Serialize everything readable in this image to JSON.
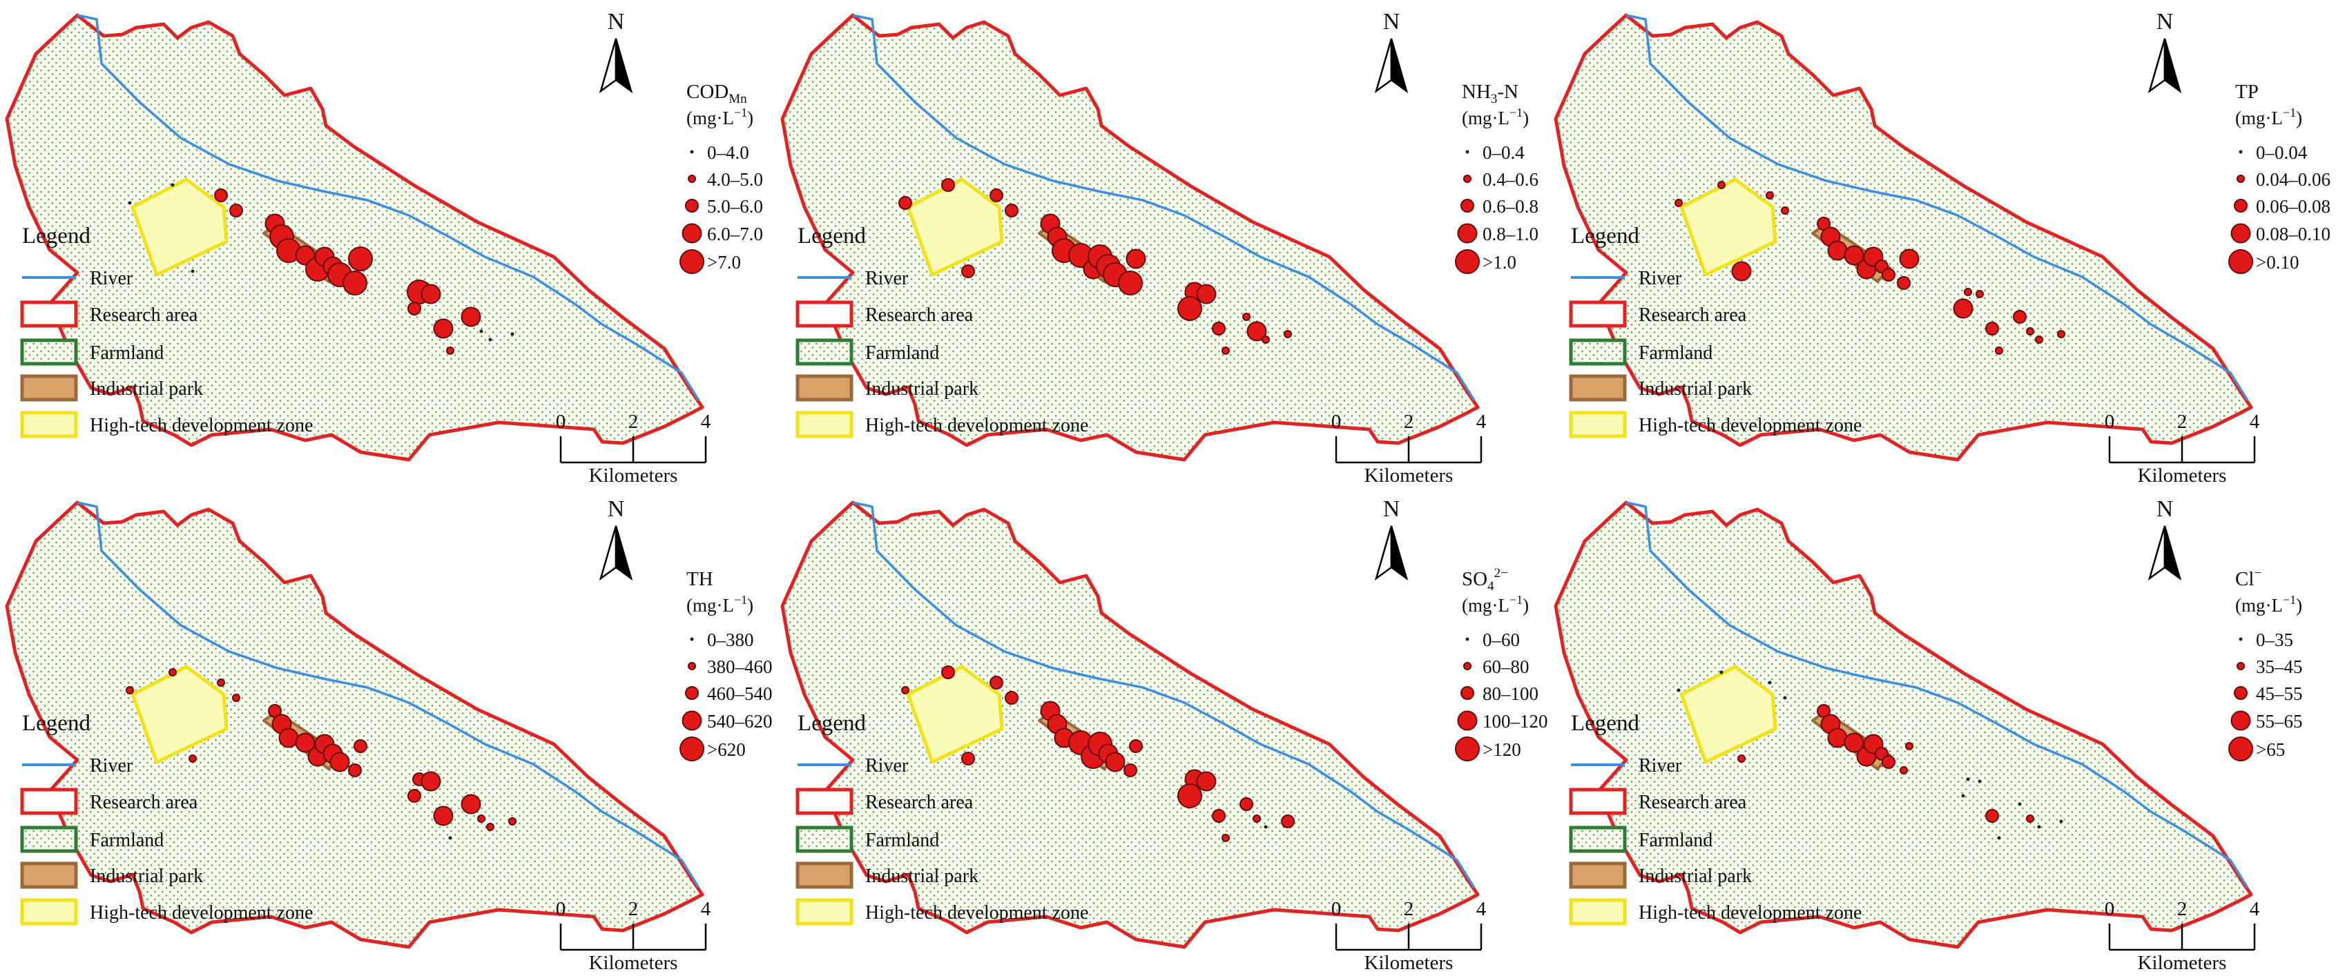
{
  "legend_title": "Legend",
  "legend_items": [
    {
      "key": "river",
      "label": "River"
    },
    {
      "key": "research",
      "label": "Research area"
    },
    {
      "key": "farmland",
      "label": "Farmland"
    },
    {
      "key": "industrial",
      "label": "Industrial park"
    },
    {
      "key": "hightech",
      "label": "High-tech development zone"
    }
  ],
  "north_label": "N",
  "scalebar": {
    "ticks": [
      "0",
      "2",
      "4"
    ],
    "unit": "Kilometers"
  },
  "colors": {
    "river": "#3d8fe0",
    "boundary": "#e02424",
    "farmland_fill": "#f7f9ee",
    "farmland_dot": "#4a9a3a",
    "farmland_legend_border": "#2f7d32",
    "industrial_fill": "#d9a26a",
    "industrial_border": "#9a6a3a",
    "hightech_fill": "#fbfbb8",
    "hightech_border": "#f2e21c",
    "symbol_fill": "#e01818",
    "symbol_stroke": "#6a0a0a"
  },
  "panels": [
    {
      "id": "codmn",
      "param_base": "COD",
      "param_sub": "Mn",
      "param_sup": "",
      "unit_base": "(mg·L",
      "unit_sup": "−1",
      "unit_close": ")",
      "classes": [
        "0–4.0",
        "4.0–5.0",
        "5.0–6.0",
        "6.0–7.0",
        ">7.0"
      ]
    },
    {
      "id": "nh3n",
      "param_base": "NH",
      "param_sub": "3",
      "param_sup": "",
      "param_tail": "-N",
      "unit_base": "(mg·L",
      "unit_sup": "−1",
      "unit_close": ")",
      "classes": [
        "0–0.4",
        "0.4–0.6",
        "0.6–0.8",
        "0.8–1.0",
        ">1.0"
      ]
    },
    {
      "id": "tp",
      "param_base": "TP",
      "param_sub": "",
      "param_sup": "",
      "unit_base": "(mg·L",
      "unit_sup": "−1",
      "unit_close": ")",
      "classes": [
        "0–0.04",
        "0.04–0.06",
        "0.06–0.08",
        "0.08–0.10",
        ">0.10"
      ]
    },
    {
      "id": "th",
      "param_base": "TH",
      "param_sub": "",
      "param_sup": "",
      "unit_base": "(mg·L",
      "unit_sup": "−1",
      "unit_close": ")",
      "classes": [
        "0–380",
        "380–460",
        "460–540",
        "540–620",
        ">620"
      ]
    },
    {
      "id": "so4",
      "param_base": "SO",
      "param_sub": "4",
      "param_sup": "2−",
      "unit_base": "(mg·L",
      "unit_sup": "−1",
      "unit_close": ")",
      "classes": [
        "0–60",
        "60–80",
        "80–100",
        "100–120",
        ">120"
      ]
    },
    {
      "id": "cl",
      "param_base": "Cl",
      "param_sub": "",
      "param_sup": "−",
      "unit_base": "(mg·L",
      "unit_sup": "−1",
      "unit_close": ")",
      "classes": [
        "0–35",
        "35–45",
        "45–55",
        "55–65",
        ">65"
      ]
    }
  ],
  "sample_classes": {
    "codmn": [
      2,
      2,
      3,
      4,
      4,
      3,
      4,
      3,
      3,
      4,
      4,
      4,
      0,
      0,
      0,
      4,
      3,
      2,
      3,
      3,
      1,
      0,
      0,
      0
    ],
    "nh3n": [
      2,
      2,
      3,
      3,
      4,
      4,
      3,
      4,
      4,
      4,
      4,
      3,
      2,
      2,
      2,
      3,
      3,
      4,
      2,
      1,
      1,
      3,
      1,
      1
    ],
    "tp": [
      1,
      1,
      2,
      3,
      3,
      3,
      3,
      3,
      2,
      2,
      2,
      3,
      1,
      1,
      3,
      1,
      1,
      3,
      2,
      2,
      1,
      1,
      1,
      1
    ],
    "th": [
      1,
      1,
      2,
      3,
      3,
      3,
      3,
      3,
      3,
      3,
      2,
      2,
      1,
      1,
      1,
      2,
      3,
      2,
      3,
      3,
      0,
      1,
      1,
      1
    ],
    "so4": [
      2,
      2,
      3,
      3,
      3,
      4,
      4,
      4,
      3,
      3,
      2,
      2,
      2,
      1,
      2,
      3,
      3,
      4,
      2,
      2,
      1,
      1,
      0,
      2
    ],
    "cl": [
      0,
      0,
      2,
      3,
      3,
      3,
      3,
      3,
      2,
      2,
      1,
      1,
      0,
      0,
      1,
      0,
      0,
      0,
      2,
      0,
      0,
      1,
      0,
      0
    ]
  }
}
